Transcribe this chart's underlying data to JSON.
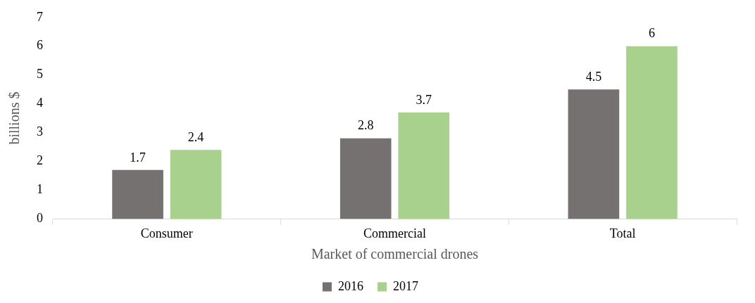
{
  "chart_data": {
    "type": "bar",
    "xlabel": "Market of commercial drones",
    "ylabel": "billions $",
    "categories": [
      "Consumer",
      "Commercial",
      "Total"
    ],
    "series": [
      {
        "name": "2016",
        "color": "#767171",
        "values": [
          1.7,
          2.8,
          4.5
        ]
      },
      {
        "name": "2017",
        "color": "#a9d18e",
        "values": [
          2.4,
          3.7,
          6
        ]
      }
    ],
    "ylim": [
      0,
      7
    ],
    "yticks": [
      0,
      1,
      2,
      3,
      4,
      5,
      6,
      7
    ],
    "grid": false,
    "legend": "bottom",
    "data_labels": true
  }
}
